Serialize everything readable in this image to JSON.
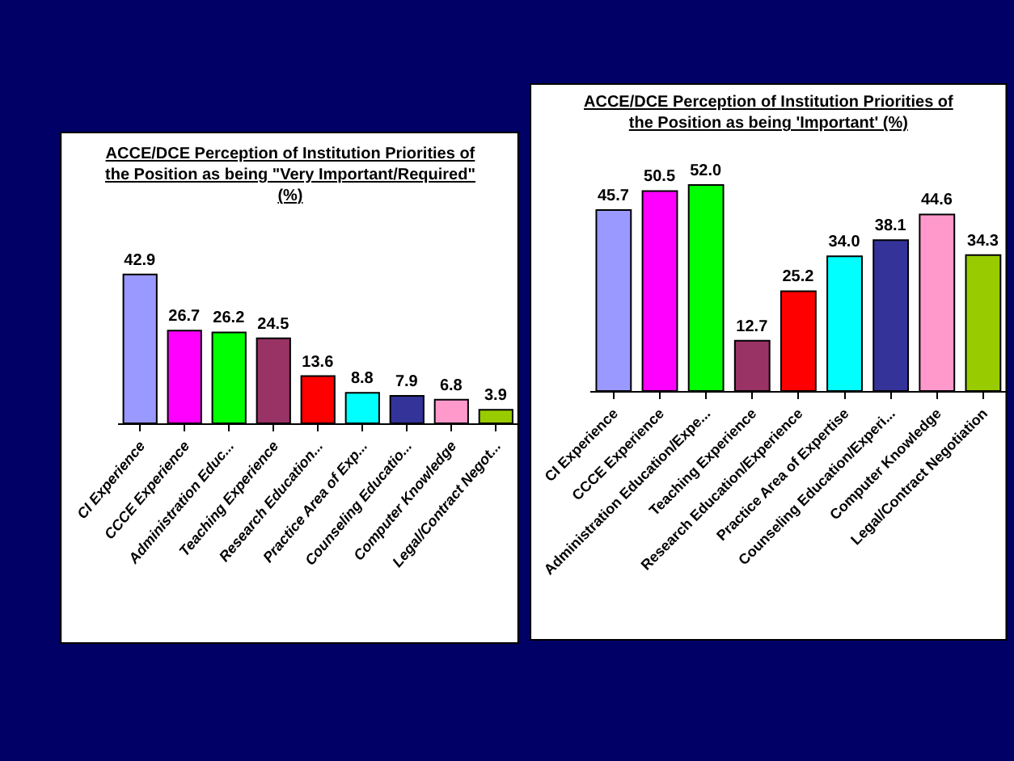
{
  "chart_data": [
    {
      "type": "bar",
      "title": "ACCE/DCE Perception of Institution Priorities of\nthe Position as being \"Very Important/Required\"\n(%)",
      "categories": [
        "CI Experience",
        "CCCE Experience",
        "Administration Educ...",
        "Teaching Experience",
        "Research Education...",
        "Practice Area of Exp...",
        "Counseling Educatio...",
        "Computer Knowledge",
        "Legal/Contract Negot..."
      ],
      "values": [
        42.9,
        26.7,
        26.2,
        24.5,
        13.6,
        8.8,
        7.9,
        6.8,
        3.9
      ],
      "colors": [
        "#9999ff",
        "#ff00ff",
        "#00ff00",
        "#993366",
        "#ff0000",
        "#00ffff",
        "#333399",
        "#ff99cc",
        "#99cc00"
      ],
      "data_labels": true,
      "tick_labels": "x"
    },
    {
      "type": "bar",
      "title": "ACCE/DCE Perception of Institution Priorities of\nthe Position as being 'Important' (%)",
      "categories": [
        "CI Experience",
        "CCCE Experience",
        "Administration Education/Expe...",
        "Teaching Experience",
        "Research Education/Experience",
        "Practice Area of Expertise",
        "Counseling Education/Experi...",
        "Computer Knowledge",
        "Legal/Contract Negotiation"
      ],
      "values": [
        45.7,
        50.5,
        52.0,
        12.7,
        25.2,
        34.0,
        38.1,
        44.6,
        34.3
      ],
      "colors": [
        "#9999ff",
        "#ff00ff",
        "#00ff00",
        "#993366",
        "#ff0000",
        "#00ffff",
        "#333399",
        "#ff99cc",
        "#99cc00"
      ],
      "value_labels": [
        "45.7",
        "50.5",
        "52.0",
        "12.7",
        "25.2",
        "34.0",
        "38.1",
        "44.6",
        "34.3"
      ],
      "tick_labels": "x"
    }
  ]
}
